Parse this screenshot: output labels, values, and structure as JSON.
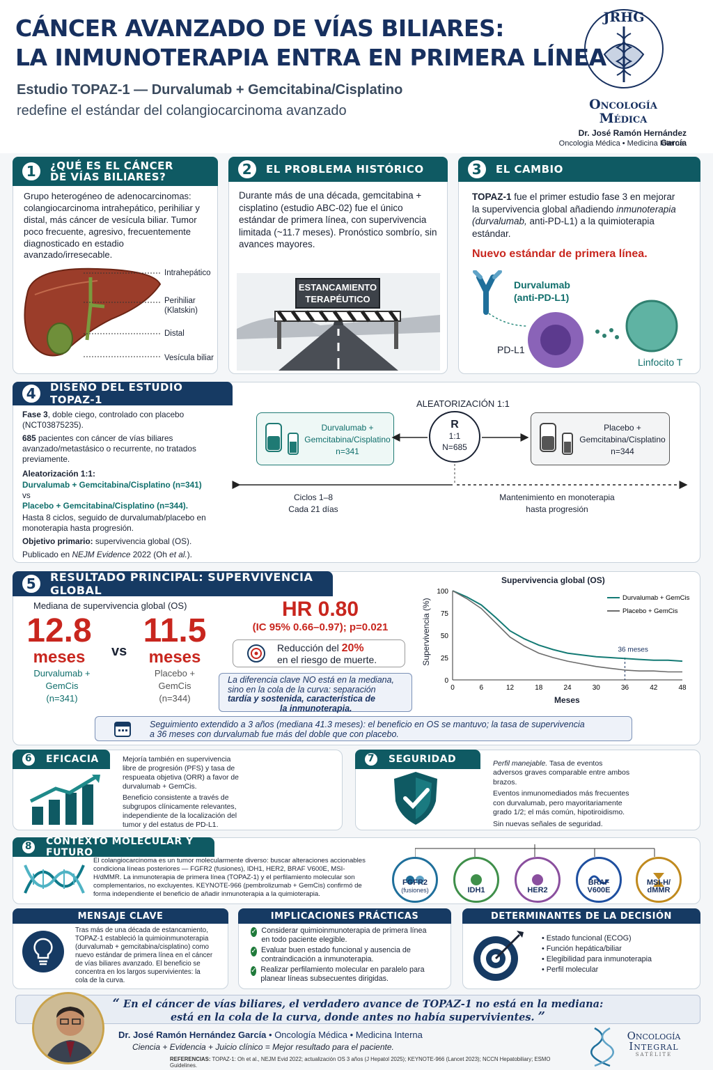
{
  "header": {
    "title_line1": "CÁNCER AVANZADO DE VÍAS BILIARES:",
    "title_line2": "LA INMUNOTERAPIA ENTRA EN PRIMERA LÍNEA",
    "subtitle_line1": "Estudio TOPAZ-1 — Durvalumab + Gemcitabina/Cisplatino",
    "subtitle_line2": "redefine el estándar del colangiocarcinoma avanzado",
    "logo_initials": "JRHG",
    "logo_text1": "Oncología",
    "logo_text2": "Médica",
    "author": "Dr. José Ramón Hernández García",
    "author_roles": "Oncologia Médica • Medicina Interna"
  },
  "s1": {
    "num": "1",
    "title1": "¿QUÉ ES EL CÁNCER",
    "title2": "DE VÍAS BILIARES?",
    "body": "Grupo heterogéneo de adenocarcinomas: colangiocarcinoma intrahepático, perihiliar y distal, más cáncer de vesícula biliar. Tumor poco frecuente, agresivo, frecuentemente diagnosticado en estadio avanzado/irresecable.",
    "labels": [
      "Intrahepático",
      "Perihiliar",
      "(Klatskin)",
      "Distal",
      "Vesícula biliar"
    ]
  },
  "s2": {
    "num": "2",
    "title": "EL PROBLEMA HISTÓRICO",
    "body": "Durante más de una década, gemcitabina + cisplatino (estudio ABC-02) fue el único estándar de primera línea, con supervivencia limitada (~11.7 meses). Pronóstico sombrío, sin avances mayores.",
    "sign1": "ESTANCAMIENTO",
    "sign2": "TERAPÉUTICO"
  },
  "s3": {
    "num": "3",
    "title": "EL CAMBIO",
    "body_bold": "TOPAZ-1",
    "body1": " fue el primer estudio fase 3 en mejorar la supervivencia global añadiendo ",
    "body_italic": "inmunoterapia (durvalumab,",
    "body2": " anti-PD-L1) a la quimioterapia estándar.",
    "highlight": "Nuevo estándar de primera línea.",
    "drug1": "Durvalumab",
    "drug2": "(anti-PD-L1)",
    "pdl1": "PD-L1",
    "tcell": "Linfocito T"
  },
  "s4": {
    "num": "4",
    "title": "DISEÑO DEL ESTUDIO TOPAZ-1",
    "p1_bold": "Fase 3",
    "p1": ", doble ciego, controlado con placebo (NCT03875235).",
    "p2_bold": "685",
    "p2": " pacientes con cáncer de vías biliares avanzado/metastásico o recurrente, no tratados previamente.",
    "p3_bold": "Aleatorización 1:1:",
    "arm1": "Durvalumab + Gemcitabina/Cisplatino (n=341)",
    "vs": "vs",
    "arm2": "Placebo + Gemcitabina/Cisplatino (n=344).",
    "p4": "Hasta 8 ciclos, seguido de durvalumab/placebo en monoterapia hasta progresión.",
    "p5_bold": "Objetivo primario:",
    "p5": " supervivencia global (OS).",
    "p6a": "Publicado en ",
    "p6_italic": "NEJM Evidence",
    "p6b": " 2022 (Oh ",
    "p6_italic2": "et al.",
    "p6c": ").",
    "rand_label": "ALEATORIZACIÓN 1:1",
    "box1_l1": "Durvalumab +",
    "box1_l2": "Gemcitabina/Cisplatino",
    "box1_l3": "n=341",
    "r": "R",
    "r_ratio": "1:1",
    "r_n": "N=685",
    "box2_l1": "Placebo +",
    "box2_l2": "Gemcitabina/Cisplatino",
    "box2_l3": "n=344",
    "cycles1": "Ciclos 1–8",
    "cycles2": "Cada 21 días",
    "maint1": "Mantenimiento en monoterapia",
    "maint2": "hasta progresión"
  },
  "s5": {
    "num": "5",
    "title": "RESULTADO PRINCIPAL: SUPERVIVENCIA GLOBAL",
    "median_label": "Mediana de supervivencia global (OS)",
    "v1": "12.8",
    "v1_unit": "meses",
    "vs": "vs",
    "v2": "11.5",
    "v2_unit": "meses",
    "arm1_l1": "Durvalumab +",
    "arm1_l2": "GemCis",
    "arm1_l3": "(n=341)",
    "arm2_l1": "Placebo +",
    "arm2_l2": "GemCis",
    "arm2_l3": "(n=344)",
    "hr": "HR 0.80",
    "ci": "(IC 95% 0.66–0.97); p=0.021",
    "reduction_a": "Reducción del ",
    "reduction_pct": "20%",
    "reduction_b": "en el riesgo de muerte.",
    "key_l1": "La diferencia clave NO está en la mediana,",
    "key_l2": "sino en la cola de la curva: separación",
    "key_l3": "tardía y sostenida, característica de",
    "key_l4": "la inmunoterapia.",
    "followup_l1": "Seguimiento extendido a 3 años (mediana 41.3 meses): el beneficio en OS se mantuvo; la tasa de supervivencia",
    "followup_l2": "a 36 meses con durvalumab fue más del doble que con placebo."
  },
  "chart_data": {
    "type": "line",
    "title": "Supervivencia global (OS)",
    "xlabel": "Meses",
    "ylabel": "Supervivencia (%)",
    "xlim": [
      0,
      48
    ],
    "ylim": [
      0,
      100
    ],
    "xticks": [
      0,
      6,
      12,
      18,
      24,
      30,
      36,
      42,
      48
    ],
    "yticks": [
      0,
      25,
      50,
      75,
      100
    ],
    "annotation": "36 meses",
    "annotation_x": 36,
    "legend_position": "top-right",
    "series": [
      {
        "name": "Durvalumab + GemCis",
        "color": "#137a74",
        "x": [
          0,
          3,
          6,
          9,
          12,
          15,
          18,
          21,
          24,
          27,
          30,
          33,
          36,
          39,
          42,
          45,
          48
        ],
        "y": [
          100,
          93,
          84,
          70,
          55,
          46,
          39,
          34,
          30,
          28,
          26,
          25,
          24,
          23,
          22,
          22,
          21
        ]
      },
      {
        "name": "Placebo + GemCis",
        "color": "#6b6b6b",
        "x": [
          0,
          3,
          6,
          9,
          12,
          15,
          18,
          21,
          24,
          27,
          30,
          33,
          36,
          39,
          42,
          45,
          48
        ],
        "y": [
          100,
          91,
          80,
          64,
          48,
          38,
          30,
          25,
          21,
          18,
          15,
          13,
          11,
          10,
          10,
          9,
          9
        ]
      }
    ]
  },
  "s6": {
    "num": "6",
    "title": "EFICACIA",
    "body1": "Mejoría también en supervivencia libre de progresión (PFS) y tasa de respueata objetiva (ORR) a favor de durvalumab + GemCis.",
    "body2": "Beneficio consistente a través de subgrupos clínicamente relevantes, independiente de la localización del tumor y del estatus de PD-L1."
  },
  "s7": {
    "num": "7",
    "title": "SEGURIDAD",
    "p1_italic": "Perfil manejable.",
    "p1": " Tasa de eventos adversos graves comparable entre ambos brazos.",
    "p2": "Eventos inmunomediados más frecuentes con durvalumab, pero mayoritariamente grado 1/2; el más común, hipotiroidismo.",
    "p3": "Sin nuevas señales de seguridad."
  },
  "s8": {
    "num": "8",
    "title": "CONTEXTO MOLECULAR Y FUTURO",
    "body": "El colangiocarcinoma es un tumor molecularmente diverso: buscar alteraciones accionables condiciona líneas posteriores — FGFR2 (fusiones), IDH1, HER2, BRAF V600E, MSI-H/dMMR. La inmunoterapia de primera línea (TOPAZ-1) y el perfilamiento molecular son complementarios, no excluyentes. KEYNOTE-966 (pembrolizumab + GemCis) confirmó de forma independiente el beneficio de añadir inmunoterapia a la quimioterapia.",
    "markers": [
      {
        "label": "FGFR2",
        "sub": "(fusiones)",
        "color": "#1f6f9b"
      },
      {
        "label": "IDH1",
        "sub": "",
        "color": "#3f8f4a"
      },
      {
        "label": "HER2",
        "sub": "",
        "color": "#8a4f9e"
      },
      {
        "label": "BRAF",
        "sub": "V600E",
        "color": "#1e4fa0"
      },
      {
        "label": "MSI-H/",
        "sub": "dMMR",
        "color": "#c08a1e"
      }
    ]
  },
  "key_message": {
    "title": "MENSAJE CLAVE",
    "body": "Tras más de una década de estancamiento, TOPAZ-1 estableció la quimioinmunoterapia (durvalumab + gemcitabina/cisplatino) como nuevo estándar de primera línea en el cáncer de vías biliares avanzado. El beneficio se concentra en los largos supervivientes: la cola de la curva."
  },
  "implications": {
    "title": "IMPLICACIONES PRÁCTICAS",
    "items": [
      "Considerar quimioinmunoterapia de primera línea en todo paciente elegible.",
      "Evaluar buen estado funcional y ausencia de contraindicación a inmunoterapia.",
      "Realizar perfilamiento molecular en paralelo para planear líneas subsecuentes dirigidas."
    ]
  },
  "determinants": {
    "title": "DETERMINANTES DE LA DECISIÓN",
    "items": [
      "Estado funcional (ECOG)",
      "Función hepática/biliar",
      "Elegibilidad para inmunoterapia",
      "Perfil molecular"
    ]
  },
  "quote": {
    "open": "“",
    "l1": "En el cáncer de vías biliares, el verdadero avance de TOPAZ-1 no está en la mediana:",
    "l2": "está en la cola de la curva, donde antes no había supervivientes.",
    "close": "”"
  },
  "footer": {
    "name": "Dr. José Ramón Hernández García",
    "roles": " • Oncología Médica • Medicina Interna",
    "tagline": "Ciencia + Evidencia + Juicio clínico = Mejor resultado para el paciente.",
    "refs_label": "REFERENCIAS:",
    "refs": "TOPAZ-1: Oh et al., NEJM Evid 2022; actualización OS 3 años (J Hepatol 2025); KEYNOTE-966 (Lancet 2023); NCCN Hepatobiliary; ESMO Guidelines.",
    "logo1": "Oncología",
    "logo2": "Integral",
    "logo3": "SATÉLITE"
  },
  "colors": {
    "teal": "#0f5a63",
    "navy": "#163a63",
    "red": "#c8261e",
    "accent_teal": "#137a74"
  }
}
